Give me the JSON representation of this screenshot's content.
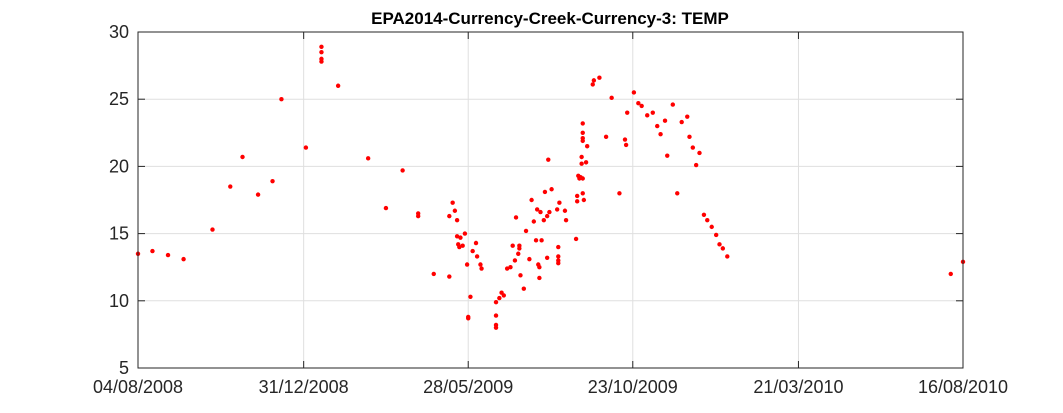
{
  "chart_data": {
    "type": "scatter",
    "title": "EPA2014-Currency-Creek-Currency-3: TEMP",
    "xlabel": "",
    "ylabel": "",
    "x_type": "date",
    "xlim": [
      "2008-08-04",
      "2010-08-16"
    ],
    "ylim": [
      5,
      30
    ],
    "x_ticks": [
      {
        "date": "2008-08-04",
        "label": "04/08/2008"
      },
      {
        "date": "2008-12-31",
        "label": "31/12/2008"
      },
      {
        "date": "2009-05-28",
        "label": "28/05/2009"
      },
      {
        "date": "2009-10-23",
        "label": "23/10/2009"
      },
      {
        "date": "2010-03-21",
        "label": "21/03/2010"
      },
      {
        "date": "2010-08-16",
        "label": "16/08/2010"
      }
    ],
    "y_ticks": [
      5,
      10,
      15,
      20,
      25,
      30
    ],
    "grid": true,
    "marker_color": "#ff0000",
    "series": [
      {
        "points": [
          [
            "2008-08-04",
            13.5
          ],
          [
            "2008-08-17",
            13.7
          ],
          [
            "2008-08-31",
            13.4
          ],
          [
            "2008-09-14",
            13.1
          ],
          [
            "2008-10-10",
            15.3
          ],
          [
            "2008-10-26",
            18.5
          ],
          [
            "2008-11-06",
            20.7
          ],
          [
            "2008-11-20",
            17.9
          ],
          [
            "2008-12-03",
            18.9
          ],
          [
            "2008-12-11",
            25.0
          ],
          [
            "2009-01-02",
            21.4
          ],
          [
            "2009-01-16",
            28.9
          ],
          [
            "2009-01-16",
            28.5
          ],
          [
            "2009-01-16",
            28.0
          ],
          [
            "2009-01-16",
            27.8
          ],
          [
            "2009-01-31",
            26.0
          ],
          [
            "2009-02-27",
            20.6
          ],
          [
            "2009-03-15",
            16.9
          ],
          [
            "2009-03-30",
            19.7
          ],
          [
            "2009-04-13",
            16.5
          ],
          [
            "2009-04-13",
            16.3
          ],
          [
            "2009-04-27",
            12.0
          ],
          [
            "2009-05-11",
            11.8
          ],
          [
            "2009-05-11",
            16.3
          ],
          [
            "2009-05-14",
            17.3
          ],
          [
            "2009-05-16",
            16.7
          ],
          [
            "2009-05-18",
            14.8
          ],
          [
            "2009-05-18",
            16.0
          ],
          [
            "2009-05-19",
            14.2
          ],
          [
            "2009-05-20",
            14.0
          ],
          [
            "2009-05-21",
            14.7
          ],
          [
            "2009-05-23",
            14.1
          ],
          [
            "2009-05-25",
            15.0
          ],
          [
            "2009-05-27",
            12.7
          ],
          [
            "2009-05-28",
            8.8
          ],
          [
            "2009-05-28",
            8.7
          ],
          [
            "2009-05-30",
            10.3
          ],
          [
            "2009-06-01",
            13.7
          ],
          [
            "2009-06-04",
            14.3
          ],
          [
            "2009-06-05",
            13.3
          ],
          [
            "2009-06-08",
            12.7
          ],
          [
            "2009-06-09",
            12.4
          ],
          [
            "2009-06-22",
            9.9
          ],
          [
            "2009-06-22",
            8.9
          ],
          [
            "2009-06-22",
            8.2
          ],
          [
            "2009-06-22",
            8.0
          ],
          [
            "2009-06-25",
            10.2
          ],
          [
            "2009-06-27",
            10.6
          ],
          [
            "2009-06-29",
            10.4
          ],
          [
            "2009-07-02",
            12.4
          ],
          [
            "2009-07-05",
            12.5
          ],
          [
            "2009-07-07",
            14.1
          ],
          [
            "2009-07-09",
            13.0
          ],
          [
            "2009-07-10",
            16.2
          ],
          [
            "2009-07-12",
            13.5
          ],
          [
            "2009-07-13",
            14.1
          ],
          [
            "2009-07-13",
            13.9
          ],
          [
            "2009-07-14",
            11.9
          ],
          [
            "2009-07-17",
            10.9
          ],
          [
            "2009-07-19",
            15.2
          ],
          [
            "2009-07-22",
            13.1
          ],
          [
            "2009-07-24",
            17.5
          ],
          [
            "2009-07-26",
            15.9
          ],
          [
            "2009-07-28",
            14.5
          ],
          [
            "2009-07-29",
            16.8
          ],
          [
            "2009-07-30",
            12.7
          ],
          [
            "2009-07-31",
            12.5
          ],
          [
            "2009-07-31",
            11.7
          ],
          [
            "2009-08-01",
            16.6
          ],
          [
            "2009-08-02",
            14.5
          ],
          [
            "2009-08-04",
            16.0
          ],
          [
            "2009-08-05",
            18.1
          ],
          [
            "2009-08-07",
            13.2
          ],
          [
            "2009-08-07",
            16.3
          ],
          [
            "2009-08-08",
            20.5
          ],
          [
            "2009-08-09",
            16.6
          ],
          [
            "2009-08-11",
            18.3
          ],
          [
            "2009-08-16",
            16.8
          ],
          [
            "2009-08-17",
            14.0
          ],
          [
            "2009-08-17",
            13.3
          ],
          [
            "2009-08-17",
            13.0
          ],
          [
            "2009-08-17",
            12.8
          ],
          [
            "2009-08-18",
            17.3
          ],
          [
            "2009-08-23",
            16.7
          ],
          [
            "2009-08-24",
            16.0
          ],
          [
            "2009-09-02",
            14.6
          ],
          [
            "2009-09-03",
            17.4
          ],
          [
            "2009-09-03",
            17.8
          ],
          [
            "2009-09-04",
            19.3
          ],
          [
            "2009-09-05",
            19.1
          ],
          [
            "2009-09-06",
            19.2
          ],
          [
            "2009-09-07",
            20.2
          ],
          [
            "2009-09-07",
            20.7
          ],
          [
            "2009-09-08",
            21.9
          ],
          [
            "2009-09-08",
            22.5
          ],
          [
            "2009-09-08",
            22.1
          ],
          [
            "2009-09-08",
            23.2
          ],
          [
            "2009-09-08",
            19.1
          ],
          [
            "2009-09-08",
            18.0
          ],
          [
            "2009-09-09",
            17.5
          ],
          [
            "2009-09-11",
            20.3
          ],
          [
            "2009-09-12",
            21.5
          ],
          [
            "2009-09-17",
            26.1
          ],
          [
            "2009-09-18",
            26.4
          ],
          [
            "2009-09-23",
            26.6
          ],
          [
            "2009-09-29",
            22.2
          ],
          [
            "2009-10-04",
            25.1
          ],
          [
            "2009-10-11",
            18.0
          ],
          [
            "2009-10-16",
            22.0
          ],
          [
            "2009-10-17",
            21.6
          ],
          [
            "2009-10-18",
            24.0
          ],
          [
            "2009-10-24",
            25.5
          ],
          [
            "2009-10-28",
            24.7
          ],
          [
            "2009-10-31",
            24.5
          ],
          [
            "2009-11-05",
            23.8
          ],
          [
            "2009-11-10",
            24.0
          ],
          [
            "2009-11-14",
            23.0
          ],
          [
            "2009-11-17",
            22.4
          ],
          [
            "2009-11-21",
            23.4
          ],
          [
            "2009-11-23",
            20.8
          ],
          [
            "2009-11-28",
            24.6
          ],
          [
            "2009-12-02",
            18.0
          ],
          [
            "2009-12-06",
            23.3
          ],
          [
            "2009-12-11",
            23.7
          ],
          [
            "2009-12-13",
            22.2
          ],
          [
            "2009-12-16",
            21.4
          ],
          [
            "2009-12-19",
            20.1
          ],
          [
            "2009-12-22",
            21.0
          ],
          [
            "2009-12-26",
            16.4
          ],
          [
            "2009-12-29",
            16.0
          ],
          [
            "2010-01-02",
            15.5
          ],
          [
            "2010-01-06",
            14.9
          ],
          [
            "2010-01-09",
            14.2
          ],
          [
            "2010-01-12",
            13.9
          ],
          [
            "2010-01-16",
            13.3
          ],
          [
            "2010-08-05",
            12.0
          ],
          [
            "2010-08-16",
            12.9
          ]
        ]
      }
    ]
  }
}
